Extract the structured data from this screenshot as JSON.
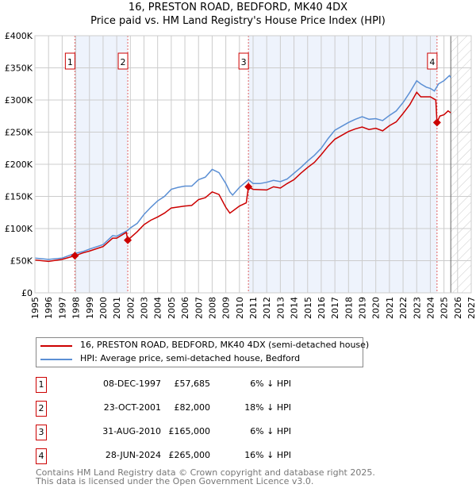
{
  "chart_data": {
    "type": "line",
    "title": "16, PRESTON ROAD, BEDFORD, MK40 4DX",
    "subtitle": "Price paid vs. HM Land Registry's House Price Index (HPI)",
    "xlim": [
      1995,
      2027
    ],
    "ylim": [
      0,
      400000
    ],
    "x_ticks": [
      "1995",
      "1996",
      "1997",
      "1998",
      "1999",
      "2000",
      "2001",
      "2002",
      "2003",
      "2004",
      "2005",
      "2006",
      "2007",
      "2008",
      "2009",
      "2010",
      "2011",
      "2012",
      "2013",
      "2014",
      "2015",
      "2016",
      "2017",
      "2018",
      "2019",
      "2020",
      "2021",
      "2022",
      "2023",
      "2024",
      "2025",
      "2026",
      "2027"
    ],
    "y_ticks": [
      {
        "v": 0,
        "label": "£0"
      },
      {
        "v": 50000,
        "label": "£50K"
      },
      {
        "v": 100000,
        "label": "£100K"
      },
      {
        "v": 150000,
        "label": "£150K"
      },
      {
        "v": 200000,
        "label": "£200K"
      },
      {
        "v": 250000,
        "label": "£250K"
      },
      {
        "v": 300000,
        "label": "£300K"
      },
      {
        "v": 350000,
        "label": "£350K"
      },
      {
        "v": 400000,
        "label": "£400K"
      }
    ],
    "grid": true,
    "series": [
      {
        "name": "16, PRESTON ROAD, BEDFORD, MK40 4DX (semi-detached house)",
        "color": "#cc0000",
        "x": [
          1995,
          1996,
          1997,
          1997.93,
          1998.5,
          1999,
          2000,
          2000.7,
          2001,
          2001.7,
          2001.81,
          2002.5,
          2003,
          2003.5,
          2004,
          2004.5,
          2005,
          2006,
          2006.5,
          2007,
          2007.5,
          2008,
          2008.5,
          2009,
          2009.3,
          2010,
          2010.5,
          2010.66,
          2011,
          2012,
          2012.5,
          2013,
          2013.5,
          2014,
          2014.5,
          2015,
          2015.5,
          2016,
          2016.5,
          2017,
          2017.5,
          2018,
          2018.5,
          2019,
          2019.5,
          2020,
          2020.5,
          2021,
          2021.5,
          2022,
          2022.5,
          2023,
          2023.3,
          2023.7,
          2024,
          2024.4,
          2024.49,
          2024.7,
          2025,
          2025.3,
          2025.5
        ],
        "y": [
          51000,
          49000,
          52000,
          57685,
          62000,
          65000,
          72000,
          85000,
          85000,
          94000,
          82000,
          95000,
          106000,
          113000,
          118000,
          124000,
          132000,
          135000,
          136000,
          145000,
          148000,
          157000,
          153000,
          133000,
          124000,
          135000,
          140000,
          165000,
          161000,
          160000,
          165000,
          163000,
          170000,
          176000,
          186000,
          195000,
          203000,
          215000,
          228000,
          239000,
          245000,
          251000,
          255000,
          258000,
          254000,
          256000,
          252000,
          260000,
          266000,
          279000,
          293000,
          312000,
          305000,
          305000,
          305000,
          300000,
          265000,
          275000,
          277000,
          283000,
          280000
        ]
      },
      {
        "name": "HPI: Average price, semi-detached house, Bedford",
        "color": "#5b8fd4",
        "x": [
          1995,
          1996,
          1997,
          1997.9,
          1998.5,
          1999,
          2000,
          2000.7,
          2001,
          2001.8,
          2002,
          2002.5,
          2003,
          2003.5,
          2004,
          2004.5,
          2005,
          2005.5,
          2006,
          2006.5,
          2007,
          2007.5,
          2008,
          2008.5,
          2009,
          2009.3,
          2009.5,
          2010,
          2010.67,
          2011,
          2011.5,
          2012,
          2012.5,
          2013,
          2013.5,
          2014,
          2014.5,
          2015,
          2015.5,
          2016,
          2016.5,
          2017,
          2017.5,
          2018,
          2018.5,
          2019,
          2019.5,
          2020,
          2020.5,
          2021,
          2021.5,
          2022,
          2022.5,
          2023,
          2023.3,
          2023.7,
          2024,
          2024.3,
          2024.6,
          2025,
          2025.4,
          2025.5
        ],
        "y": [
          54000,
          52000,
          54000,
          61000,
          64000,
          68000,
          75000,
          89000,
          88000,
          97000,
          101000,
          108000,
          122000,
          133000,
          143000,
          150000,
          161000,
          164000,
          166000,
          166000,
          176000,
          180000,
          192000,
          187000,
          170000,
          157000,
          152000,
          164000,
          176000,
          170000,
          170000,
          172000,
          175000,
          173000,
          177000,
          186000,
          195000,
          205000,
          214000,
          225000,
          240000,
          253000,
          259000,
          265000,
          270000,
          274000,
          270000,
          271000,
          268000,
          276000,
          283000,
          296000,
          312000,
          330000,
          325000,
          320000,
          318000,
          314000,
          325000,
          330000,
          338000,
          335000
        ]
      }
    ],
    "sales": [
      {
        "label": "1",
        "x": 1997.93,
        "y": 57685,
        "date": "08-DEC-1997",
        "price": "£57,685",
        "hpi": "6% ↓ HPI"
      },
      {
        "label": "2",
        "x": 2001.81,
        "y": 82000,
        "date": "23-OCT-2001",
        "price": "£82,000",
        "hpi": "18% ↓ HPI"
      },
      {
        "label": "3",
        "x": 2010.66,
        "y": 165000,
        "date": "31-AUG-2010",
        "price": "£165,000",
        "hpi": "6% ↓ HPI"
      },
      {
        "label": "4",
        "x": 2024.49,
        "y": 265000,
        "date": "28-JUN-2024",
        "price": "£265,000",
        "hpi": "16% ↓ HPI"
      }
    ],
    "shaded_ranges": [
      [
        1997.93,
        2001.81
      ],
      [
        2010.66,
        2024.49
      ]
    ],
    "forecast_from": 2025.5
  },
  "footer": {
    "line1": "Contains HM Land Registry data © Crown copyright and database right 2025.",
    "line2": "This data is licensed under the Open Government Licence v3.0."
  }
}
